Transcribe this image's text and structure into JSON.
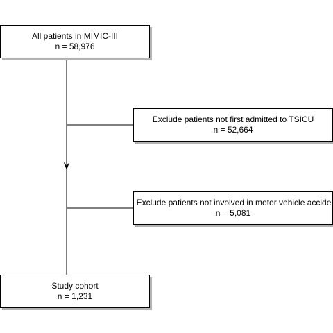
{
  "flowchart": {
    "source": {
      "title": "All patients in MIMIC-III",
      "count": "n = 58,976"
    },
    "exclusions": [
      {
        "title": "Exclude patients not first admitted to TSICU",
        "count": "n = 52,664"
      },
      {
        "title": "Exclude patients not involved in motor vehicle accident",
        "count": "n = 5,081"
      }
    ],
    "result": {
      "title": "Study cohort",
      "count": "n = 1,231"
    }
  },
  "colors": {
    "line": "#000000",
    "box_border": "#000000",
    "box_fill": "#ffffff",
    "shadow": "#b3b3b3"
  }
}
